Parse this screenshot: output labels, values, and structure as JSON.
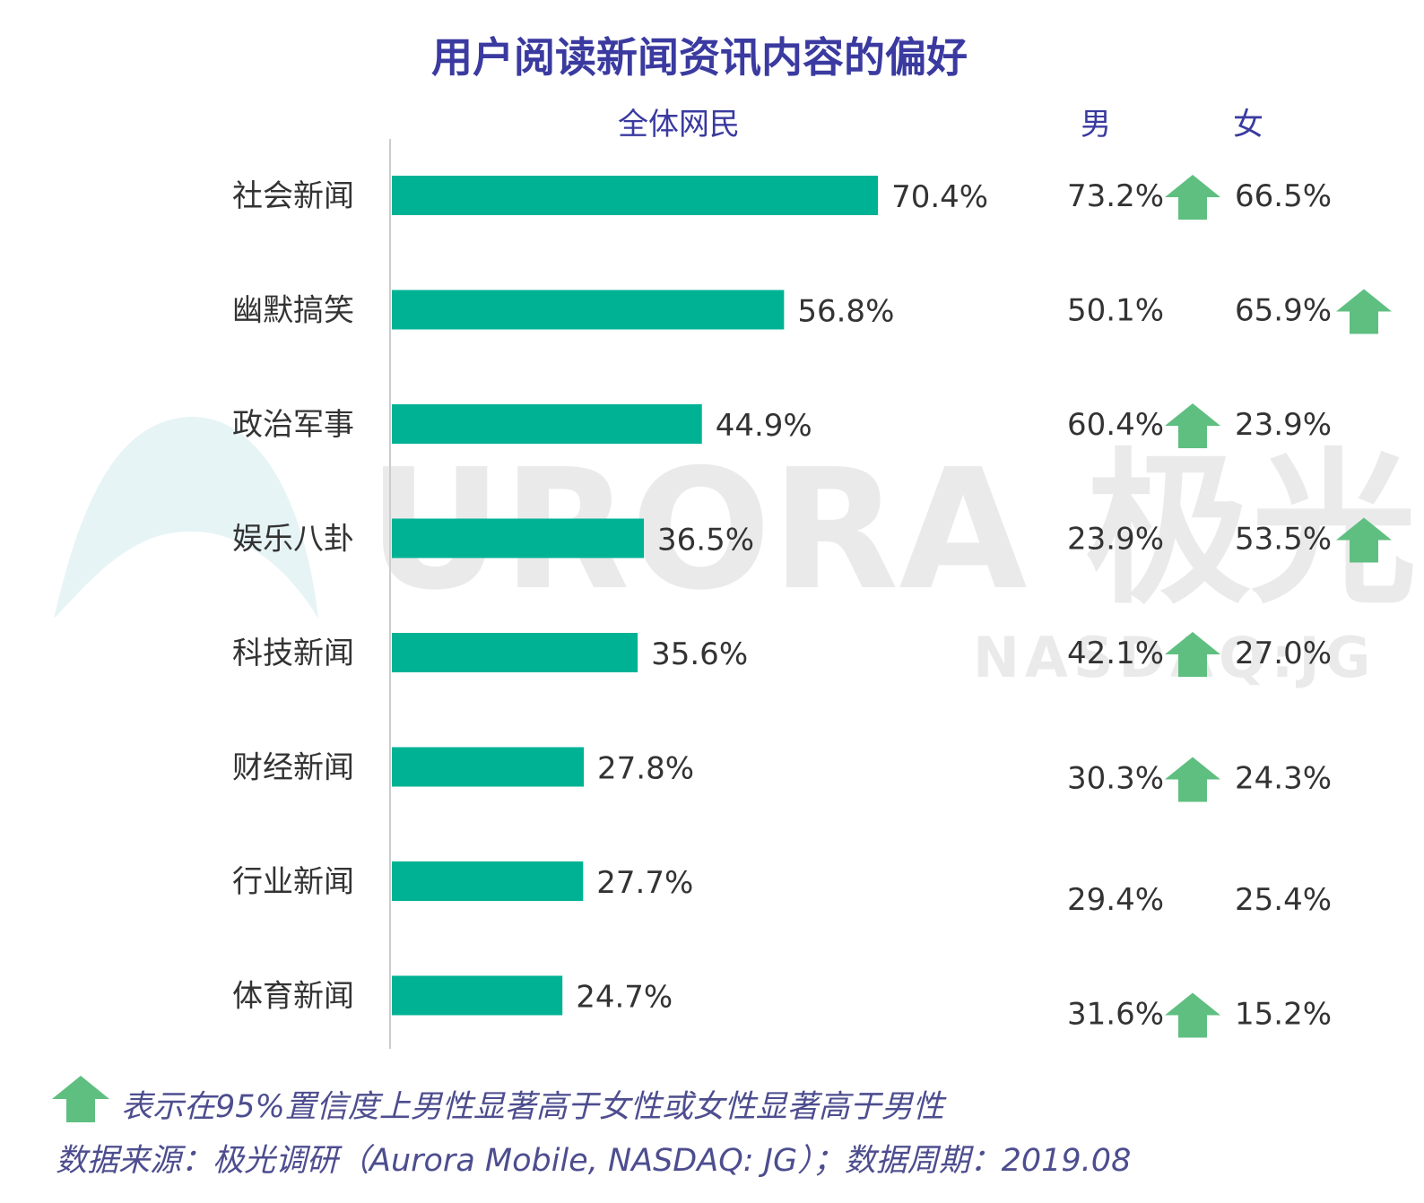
{
  "title": "用户阅读新闻资讯内容的偏好",
  "column_headers": {
    "all": "全体网民",
    "male": "男",
    "female": "女"
  },
  "chart_data": {
    "type": "bar",
    "title": "用户阅读新闻资讯内容的偏好",
    "categories": [
      "社会新闻",
      "幽默搞笑",
      "政治军事",
      "娱乐八卦",
      "科技新闻",
      "财经新闻",
      "行业新闻",
      "体育新闻"
    ],
    "series": [
      {
        "name": "全体网民",
        "values": [
          70.4,
          56.8,
          44.9,
          36.5,
          35.6,
          27.8,
          27.7,
          24.7
        ]
      }
    ],
    "value_labels": [
      "70.4%",
      "56.8%",
      "44.9%",
      "36.5%",
      "35.6%",
      "27.8%",
      "27.7%",
      "24.7%"
    ],
    "male": {
      "name": "男",
      "values": [
        73.2,
        50.1,
        60.4,
        23.9,
        42.1,
        30.3,
        29.4,
        31.6
      ],
      "labels": [
        "73.2%",
        "50.1%",
        "60.4%",
        "23.9%",
        "42.1%",
        "30.3%",
        "29.4%",
        "31.6%"
      ],
      "significant": [
        true,
        false,
        true,
        false,
        true,
        true,
        false,
        true
      ]
    },
    "female": {
      "name": "女",
      "values": [
        66.5,
        65.9,
        23.9,
        53.5,
        27.0,
        24.3,
        25.4,
        15.2
      ],
      "labels": [
        "66.5%",
        "65.9%",
        "23.9%",
        "53.5%",
        "27.0%",
        "24.3%",
        "25.4%",
        "15.2%"
      ],
      "significant": [
        false,
        true,
        false,
        true,
        false,
        false,
        false,
        false
      ]
    },
    "xlim": [
      0,
      100
    ],
    "grid": false,
    "colors": {
      "bar": "#00b294",
      "arrow": "#5fbf80",
      "title": "#3a3aa0",
      "text": "#333333"
    }
  },
  "watermark": {
    "brand": "URORA 极光",
    "sub": "NASDAQ:JG"
  },
  "legend_text": "表示在95%置信度上男性显著高于女性或女性显著高于男性",
  "source_text": "数据来源：极光调研（Aurora Mobile, NASDAQ: JG）；数据周期：2019.08"
}
